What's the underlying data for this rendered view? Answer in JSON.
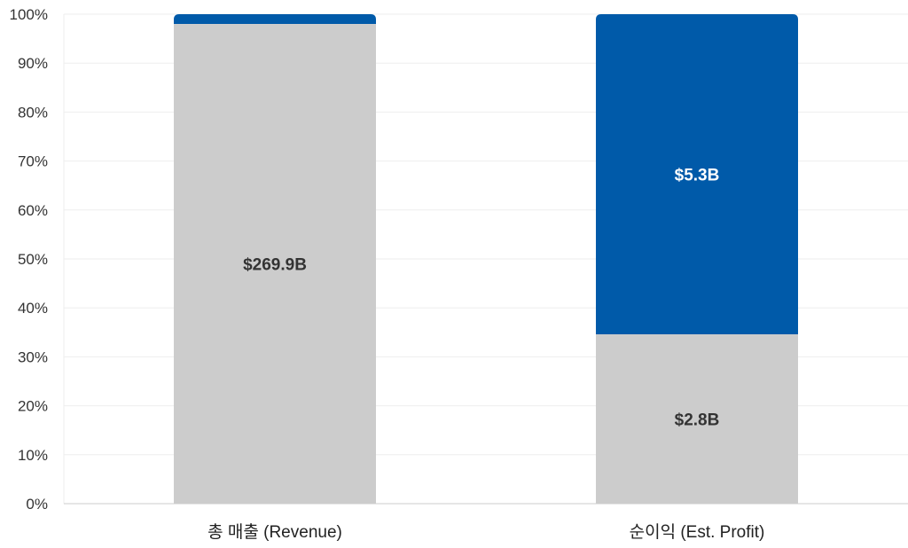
{
  "chart_data": {
    "type": "bar",
    "stacked": true,
    "normalized": true,
    "categories": [
      "총 매출 (Revenue)",
      "순이익 (Est. Profit)"
    ],
    "series": [
      {
        "values": [
          269.9,
          2.8
        ],
        "percent_values": [
          98.0,
          34.6
        ],
        "labels": [
          "$269.9B",
          "$2.8B"
        ],
        "color": "#cccccc",
        "label_color": "#333333"
      },
      {
        "values": [
          5.5,
          5.3
        ],
        "percent_values": [
          2.0,
          65.4
        ],
        "labels": [
          "",
          "$5.3B"
        ],
        "color": "#005aa9",
        "label_color": "#ffffff"
      }
    ],
    "ylim": [
      0,
      100
    ],
    "yticks": [
      "0%",
      "10%",
      "20%",
      "30%",
      "40%",
      "50%",
      "60%",
      "70%",
      "80%",
      "90%",
      "100%"
    ],
    "grid": true,
    "legend": "none",
    "colors": {
      "grid": "#eeeeee",
      "axis": "#cccccc"
    }
  }
}
